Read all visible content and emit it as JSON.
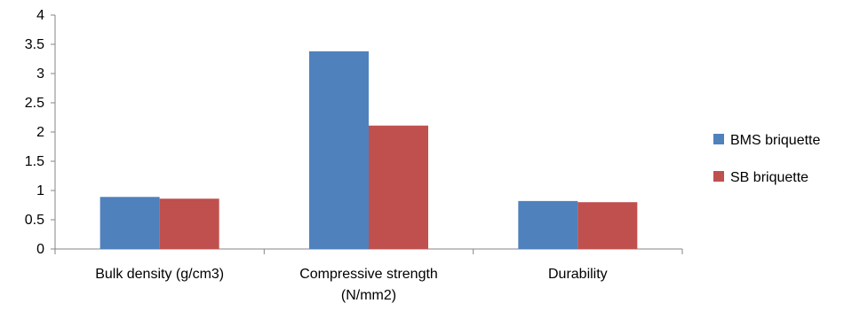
{
  "chart_data": {
    "type": "bar",
    "title": "",
    "xlabel": "",
    "ylabel": "",
    "categories": [
      [
        "Bulk density (g/cm3)"
      ],
      [
        "Compressive strength",
        "(N/mm2)"
      ],
      [
        "Durability"
      ]
    ],
    "series": [
      {
        "name": "BMS briquette",
        "color": "#4F81BD",
        "values": [
          0.89,
          3.38,
          0.82
        ]
      },
      {
        "name": "SB briquette",
        "color": "#C0504D",
        "values": [
          0.86,
          2.11,
          0.8
        ]
      }
    ],
    "ylim": [
      0,
      4
    ],
    "yticks": [
      "0",
      "0.5",
      "1",
      "1.5",
      "2",
      "2.5",
      "3",
      "3.5",
      "4"
    ],
    "grid": false,
    "legend_position": "right"
  }
}
